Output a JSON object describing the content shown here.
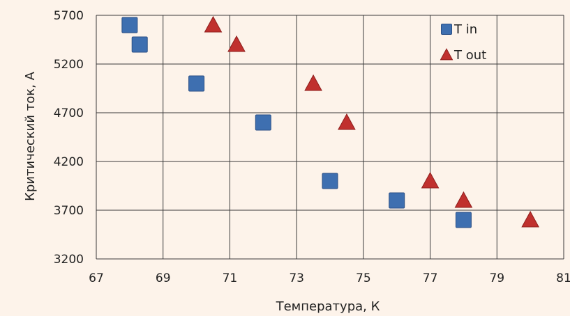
{
  "chart_data": {
    "type": "scatter",
    "xlabel": "Температура, К",
    "ylabel": "Критический ток, А",
    "xlim": [
      67,
      81
    ],
    "ylim": [
      3200,
      5700
    ],
    "xticks": [
      67,
      69,
      71,
      73,
      75,
      77,
      79,
      81
    ],
    "yticks": [
      3200,
      3700,
      4200,
      4700,
      5200,
      5700
    ],
    "grid": true,
    "legend_position": "top-right",
    "series": [
      {
        "name": "T in",
        "marker": "square",
        "color": "#3e6fb0",
        "x": [
          68.0,
          68.3,
          70.0,
          72.0,
          74.0,
          76.0,
          78.0
        ],
        "y": [
          5600,
          5400,
          5000,
          4600,
          4000,
          3800,
          3600
        ]
      },
      {
        "name": "T out",
        "marker": "triangle",
        "color": "#c0302e",
        "x": [
          70.5,
          71.2,
          73.5,
          74.5,
          77.0,
          78.0,
          80.0
        ],
        "y": [
          5600,
          5400,
          5000,
          4600,
          4000,
          3800,
          3600
        ]
      }
    ]
  }
}
